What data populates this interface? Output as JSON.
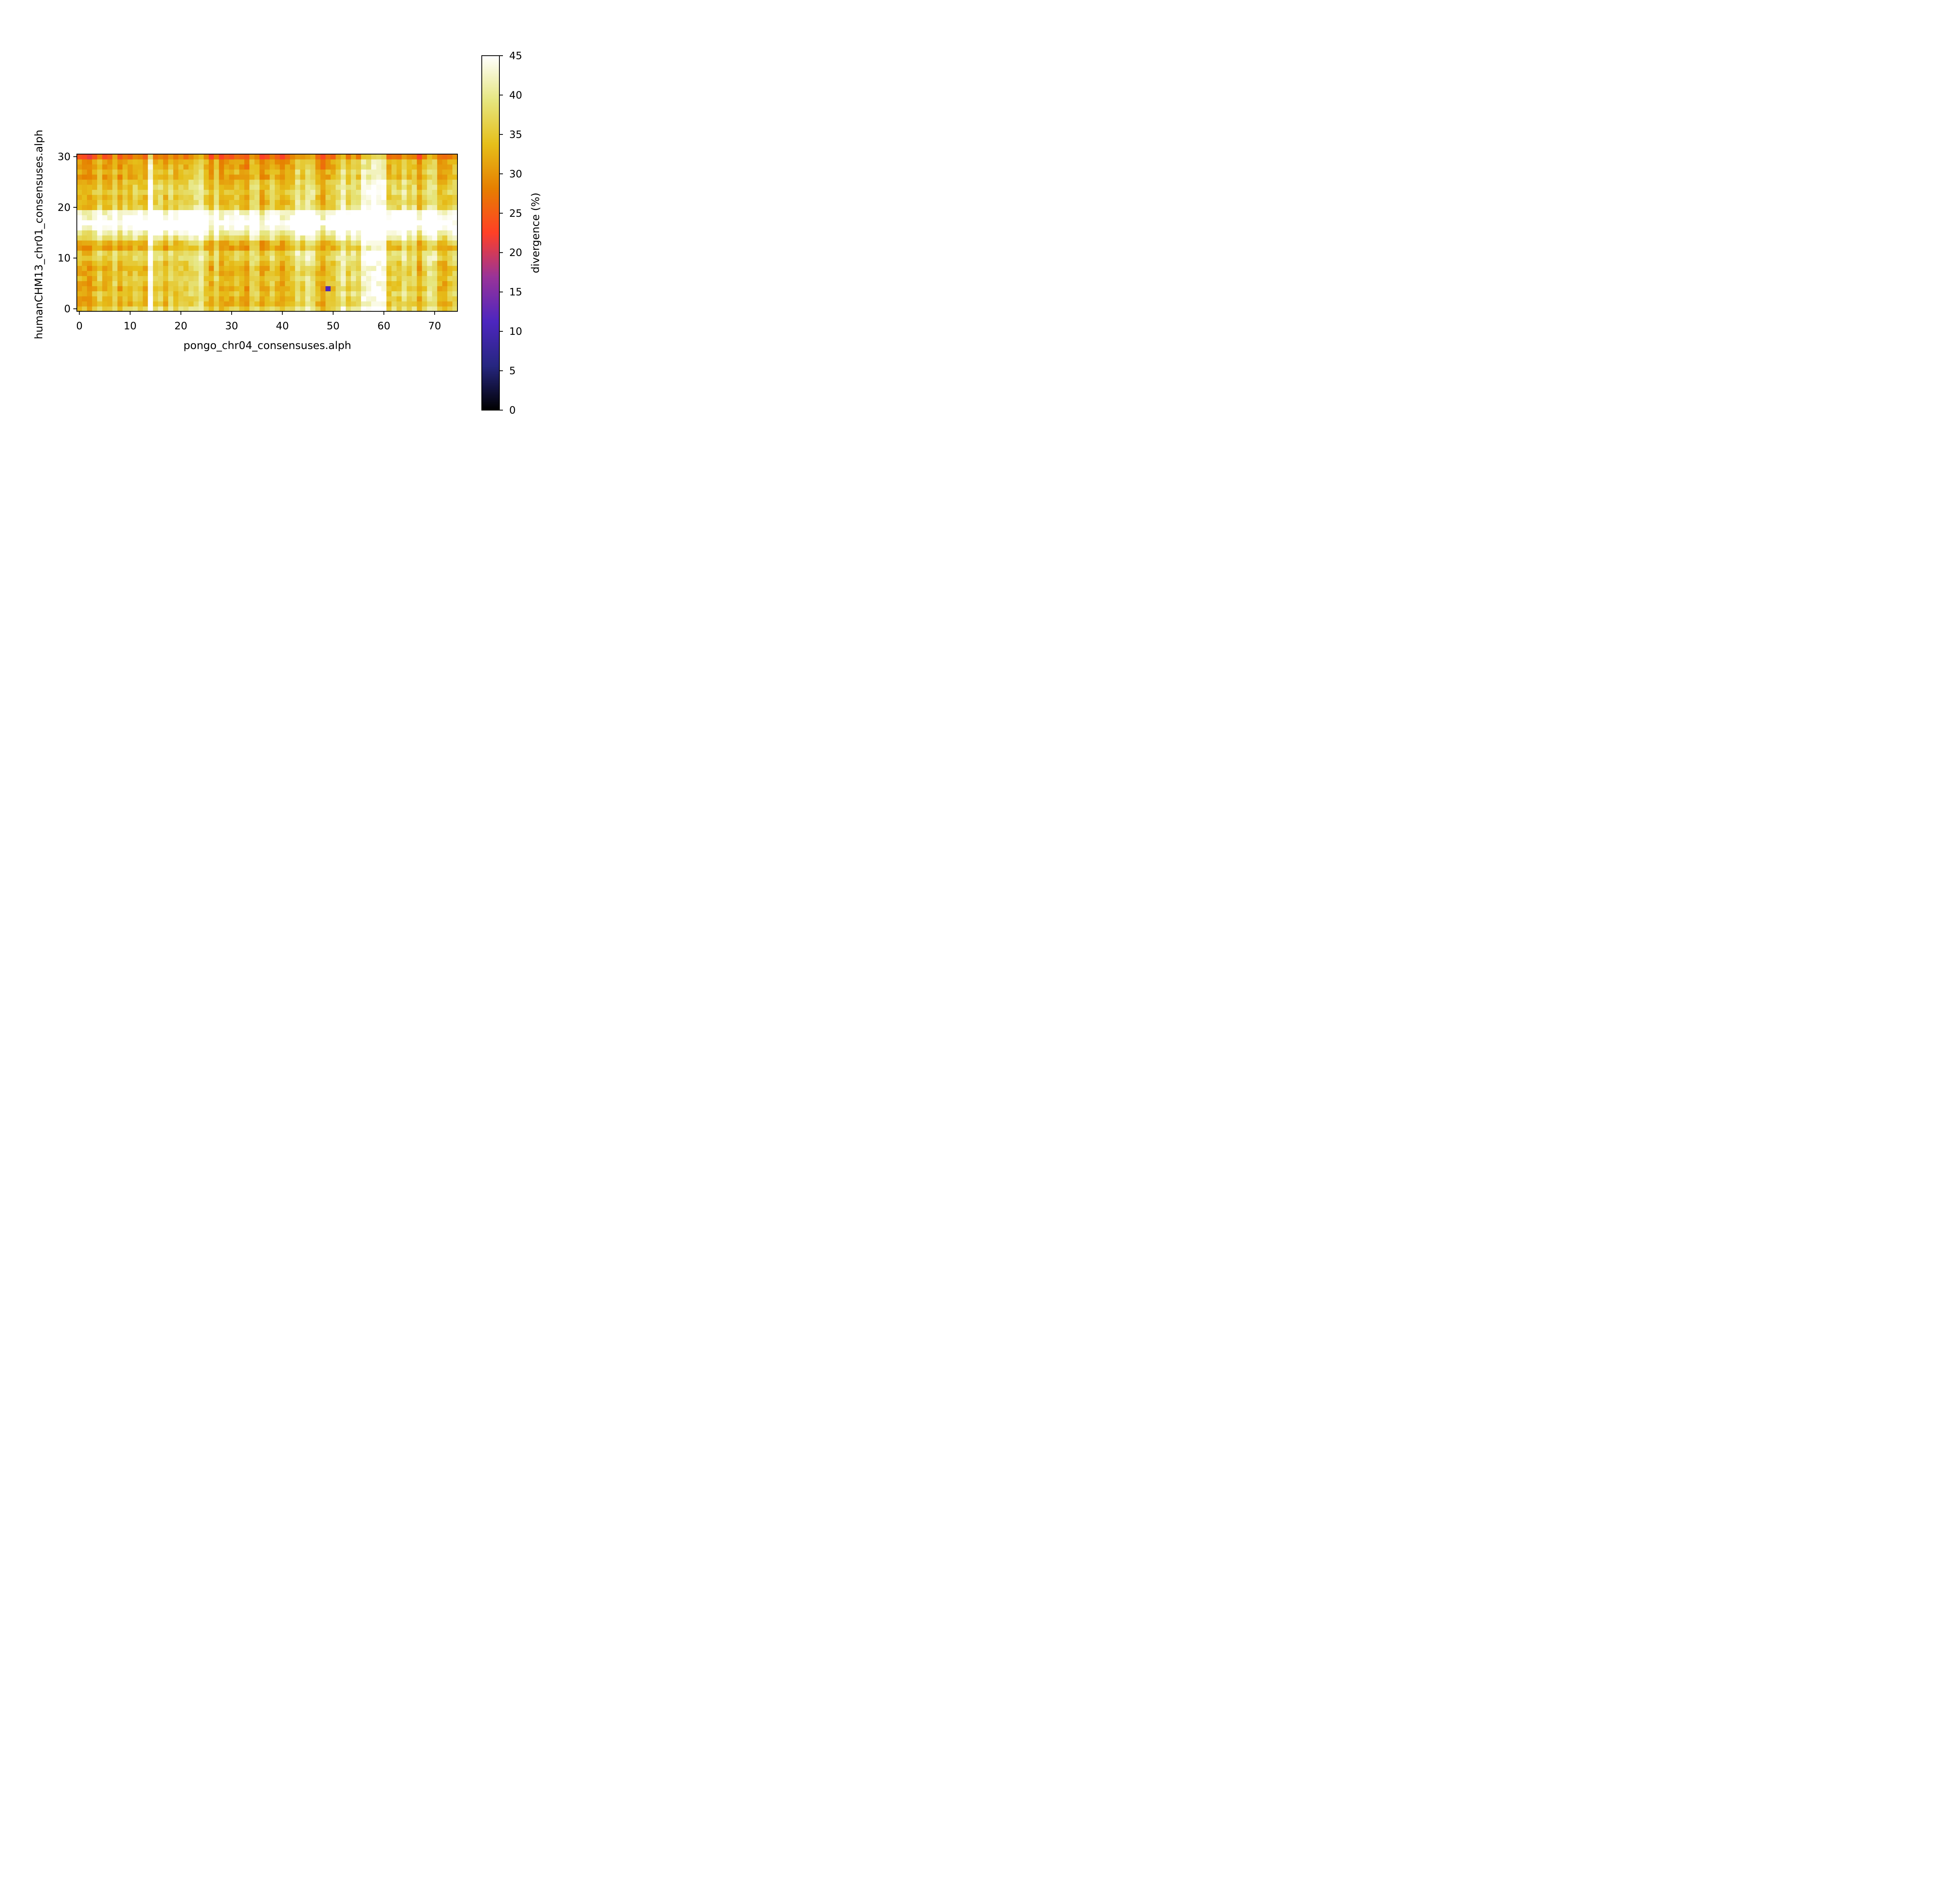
{
  "chart_data": {
    "type": "heatmap",
    "title": "",
    "xlabel": "pongo_chr04_consensuses.alph",
    "ylabel": "humanCHM13_chr01_consensuses.alph",
    "x_count": 75,
    "y_count": 31,
    "xlim": [
      -0.5,
      74.5
    ],
    "ylim": [
      -0.5,
      30.5
    ],
    "x_ticks": [
      0,
      10,
      20,
      30,
      40,
      50,
      60,
      70
    ],
    "y_ticks": [
      0,
      10,
      20,
      30
    ],
    "colormap": "CMRmap",
    "colorbar": {
      "label": "divergence (%)",
      "vmin": 0,
      "vmax": 45,
      "ticks": [
        0,
        5,
        10,
        15,
        20,
        25,
        30,
        35,
        40,
        45
      ],
      "placement": "right"
    },
    "column_profile": [
      15.5,
      14.6,
      13.5,
      16.2,
      19.6,
      15.9,
      15.6,
      20.3,
      14.7,
      18.4,
      16.6,
      18.5,
      17.5,
      16.1,
      28.2,
      18.5,
      20.0,
      15.8,
      20.5,
      17.1,
      19.1,
      18.7,
      20.4,
      21.1,
      23.1,
      18.2,
      14.4,
      20.5,
      14.3,
      15.8,
      15.8,
      17.6,
      15.9,
      14.2,
      19.9,
      19.6,
      13.7,
      15.9,
      19.4,
      16.5,
      14.7,
      16.3,
      17.6,
      22.7,
      19.1,
      22.6,
      21.4,
      17.1,
      14.1,
      17.4,
      17.6,
      20.6,
      24.0,
      18.8,
      21.8,
      19.8,
      26.5,
      26.0,
      27.4,
      27.5,
      27.4,
      17.6,
      19.7,
      18.1,
      22.1,
      18.5,
      20.6,
      14.5,
      18.9,
      22.5,
      22.0,
      16.1,
      15.2,
      18.2,
      19.8
    ],
    "row_profile": [
      19.5,
      16.0,
      16.7,
      17.9,
      16.2,
      16.9,
      17.7,
      17.0,
      16.3,
      17.6,
      19.4,
      19.1,
      14.8,
      16.7,
      21.8,
      24.7,
      28.1,
      30.5,
      28.0,
      26.2,
      19.0,
      17.6,
      17.6,
      18.8,
      18.1,
      17.3,
      14.6,
      15.9,
      14.3,
      14.3,
      9.5
    ],
    "value_formula": "divergence(row, col) ≈ row_profile[row] + column_profile[col] + local noise (values estimated from colors)",
    "hotspots": [
      {
        "x": 56,
        "y": 17,
        "value": 45
      },
      {
        "x": 60,
        "y": 18,
        "value": 45
      },
      {
        "x": 74,
        "y": 17,
        "value": 44
      },
      {
        "x": 49,
        "y": 4,
        "value": 11
      }
    ]
  }
}
